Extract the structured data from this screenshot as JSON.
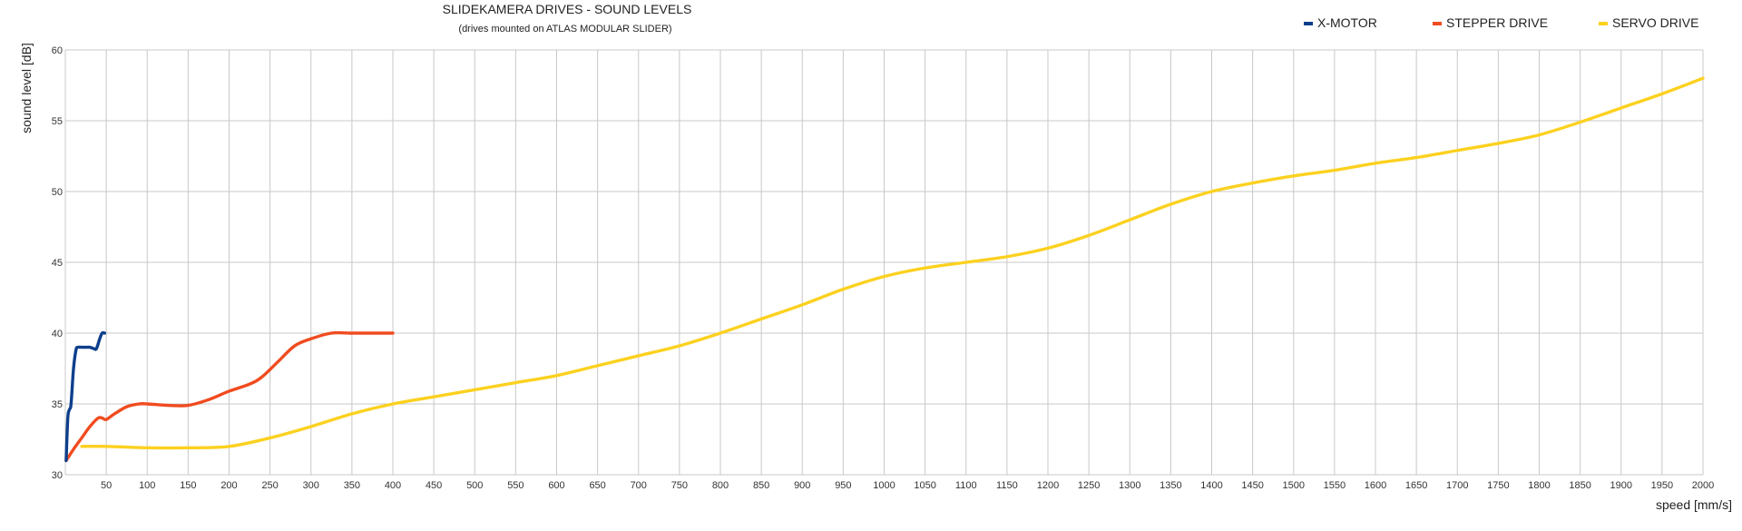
{
  "chart_data": {
    "type": "line",
    "title": "SLIDEKAMERA DRIVES - SOUND LEVELS",
    "subtitle": "(drives mounted on ATLAS MODULAR SLIDER)",
    "xlabel": "speed [mm/s]",
    "ylabel": "sound level [dB]",
    "xlim": [
      0,
      2000
    ],
    "ylim": [
      30,
      60
    ],
    "x_ticks": [
      50,
      100,
      150,
      200,
      250,
      300,
      350,
      400,
      450,
      500,
      550,
      600,
      650,
      700,
      750,
      800,
      850,
      900,
      950,
      1000,
      1050,
      1100,
      1150,
      1200,
      1250,
      1300,
      1350,
      1400,
      1450,
      1500,
      1550,
      1600,
      1650,
      1700,
      1750,
      1800,
      1850,
      1900,
      1950,
      2000
    ],
    "y_ticks": [
      30,
      35,
      40,
      45,
      50,
      55,
      60
    ],
    "grid": true,
    "legend_position": "top-right",
    "series": [
      {
        "name": "X-MOTOR",
        "color": "#0d3f8c",
        "points": [
          [
            1,
            31
          ],
          [
            3,
            34
          ],
          [
            5,
            34.6
          ],
          [
            7,
            35
          ],
          [
            10,
            37.5
          ],
          [
            13,
            38.8
          ],
          [
            15,
            39
          ],
          [
            20,
            39
          ],
          [
            25,
            39
          ],
          [
            30,
            39
          ],
          [
            35,
            38.9
          ],
          [
            38,
            38.9
          ],
          [
            42,
            39.6
          ],
          [
            45,
            40
          ],
          [
            48,
            40
          ]
        ]
      },
      {
        "name": "STEPPER DRIVE",
        "color": "#f04b1f",
        "points": [
          [
            1,
            31
          ],
          [
            10,
            31.8
          ],
          [
            20,
            32.6
          ],
          [
            30,
            33.4
          ],
          [
            40,
            34
          ],
          [
            45,
            34
          ],
          [
            50,
            33.9
          ],
          [
            60,
            34.3
          ],
          [
            75,
            34.8
          ],
          [
            90,
            35
          ],
          [
            100,
            35
          ],
          [
            125,
            34.9
          ],
          [
            150,
            34.9
          ],
          [
            175,
            35.3
          ],
          [
            200,
            35.9
          ],
          [
            225,
            36.4
          ],
          [
            240,
            36.9
          ],
          [
            260,
            38
          ],
          [
            280,
            39.1
          ],
          [
            300,
            39.6
          ],
          [
            325,
            40
          ],
          [
            350,
            40
          ],
          [
            375,
            40
          ],
          [
            400,
            40
          ]
        ]
      },
      {
        "name": "SERVO DRIVE",
        "color": "#fcd11f",
        "points": [
          [
            20,
            32
          ],
          [
            50,
            32
          ],
          [
            100,
            31.9
          ],
          [
            150,
            31.9
          ],
          [
            200,
            32
          ],
          [
            250,
            32.6
          ],
          [
            300,
            33.4
          ],
          [
            350,
            34.3
          ],
          [
            400,
            35
          ],
          [
            450,
            35.5
          ],
          [
            500,
            36
          ],
          [
            550,
            36.5
          ],
          [
            600,
            37
          ],
          [
            650,
            37.7
          ],
          [
            700,
            38.4
          ],
          [
            750,
            39.1
          ],
          [
            800,
            40
          ],
          [
            850,
            41
          ],
          [
            900,
            42
          ],
          [
            950,
            43.1
          ],
          [
            1000,
            44
          ],
          [
            1050,
            44.6
          ],
          [
            1100,
            45
          ],
          [
            1150,
            45.4
          ],
          [
            1200,
            46
          ],
          [
            1250,
            46.9
          ],
          [
            1300,
            48
          ],
          [
            1350,
            49.1
          ],
          [
            1400,
            50
          ],
          [
            1450,
            50.6
          ],
          [
            1500,
            51.1
          ],
          [
            1550,
            51.5
          ],
          [
            1600,
            52
          ],
          [
            1650,
            52.4
          ],
          [
            1700,
            52.9
          ],
          [
            1750,
            53.4
          ],
          [
            1800,
            54
          ],
          [
            1850,
            54.9
          ],
          [
            1900,
            55.9
          ],
          [
            1950,
            56.9
          ],
          [
            2000,
            58
          ]
        ]
      }
    ]
  }
}
